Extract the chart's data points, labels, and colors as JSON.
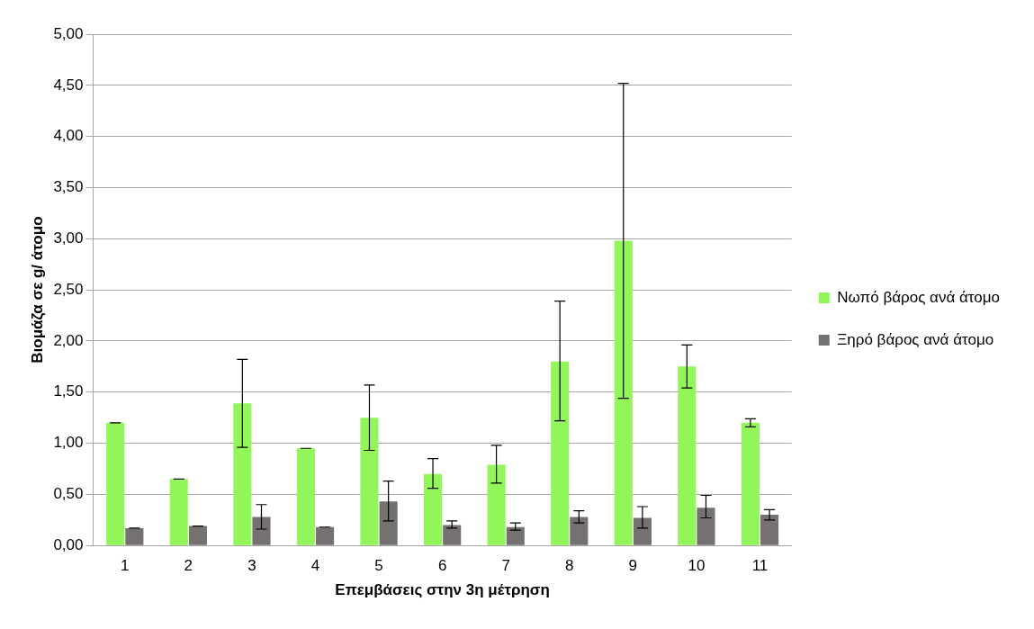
{
  "chart_data": {
    "type": "bar",
    "xlabel": "Επεμβάσεις στην 3η μέτρηση",
    "ylabel": "Βιομάζα σε g/ άτομο",
    "categories": [
      "1",
      "2",
      "3",
      "4",
      "5",
      "6",
      "7",
      "8",
      "9",
      "10",
      "11"
    ],
    "series": [
      {
        "name": "Νωπό βάρος ανά άτομο",
        "color": "#92f55a",
        "values": [
          1.2,
          0.65,
          1.39,
          0.95,
          1.25,
          0.7,
          0.79,
          1.8,
          2.98,
          1.75,
          1.2
        ],
        "errors": [
          0,
          0,
          [
            0.96,
            1.82
          ],
          0,
          [
            0.93,
            1.57
          ],
          [
            0.56,
            0.85
          ],
          [
            0.61,
            0.98
          ],
          [
            1.22,
            2.39
          ],
          [
            1.44,
            4.52
          ],
          [
            1.54,
            1.96
          ],
          [
            1.16,
            1.24
          ]
        ]
      },
      {
        "name": "Ξηρό βάρος ανά άτομο",
        "color": "#757170",
        "values": [
          0.17,
          0.19,
          0.28,
          0.18,
          0.43,
          0.2,
          0.18,
          0.28,
          0.27,
          0.37,
          0.3
        ],
        "errors": [
          0,
          0,
          [
            0.16,
            0.4
          ],
          0,
          [
            0.24,
            0.63
          ],
          [
            0.17,
            0.24
          ],
          [
            0.15,
            0.22
          ],
          [
            0.22,
            0.34
          ],
          [
            0.17,
            0.38
          ],
          [
            0.27,
            0.49
          ],
          [
            0.25,
            0.35
          ]
        ]
      }
    ],
    "ylim": [
      0,
      5
    ],
    "yticks": [
      {
        "value": 0,
        "label": "0,00"
      },
      {
        "value": 0.5,
        "label": "0,50"
      },
      {
        "value": 1,
        "label": "1,00"
      },
      {
        "value": 1.5,
        "label": "1,50"
      },
      {
        "value": 2,
        "label": "2,00"
      },
      {
        "value": 2.5,
        "label": "2,50"
      },
      {
        "value": 3,
        "label": "3,00"
      },
      {
        "value": 3.5,
        "label": "3,50"
      },
      {
        "value": 4,
        "label": "4,00"
      },
      {
        "value": 4.5,
        "label": "4,50"
      },
      {
        "value": 5,
        "label": "5,00"
      }
    ],
    "grid": "y",
    "legend": "right"
  }
}
